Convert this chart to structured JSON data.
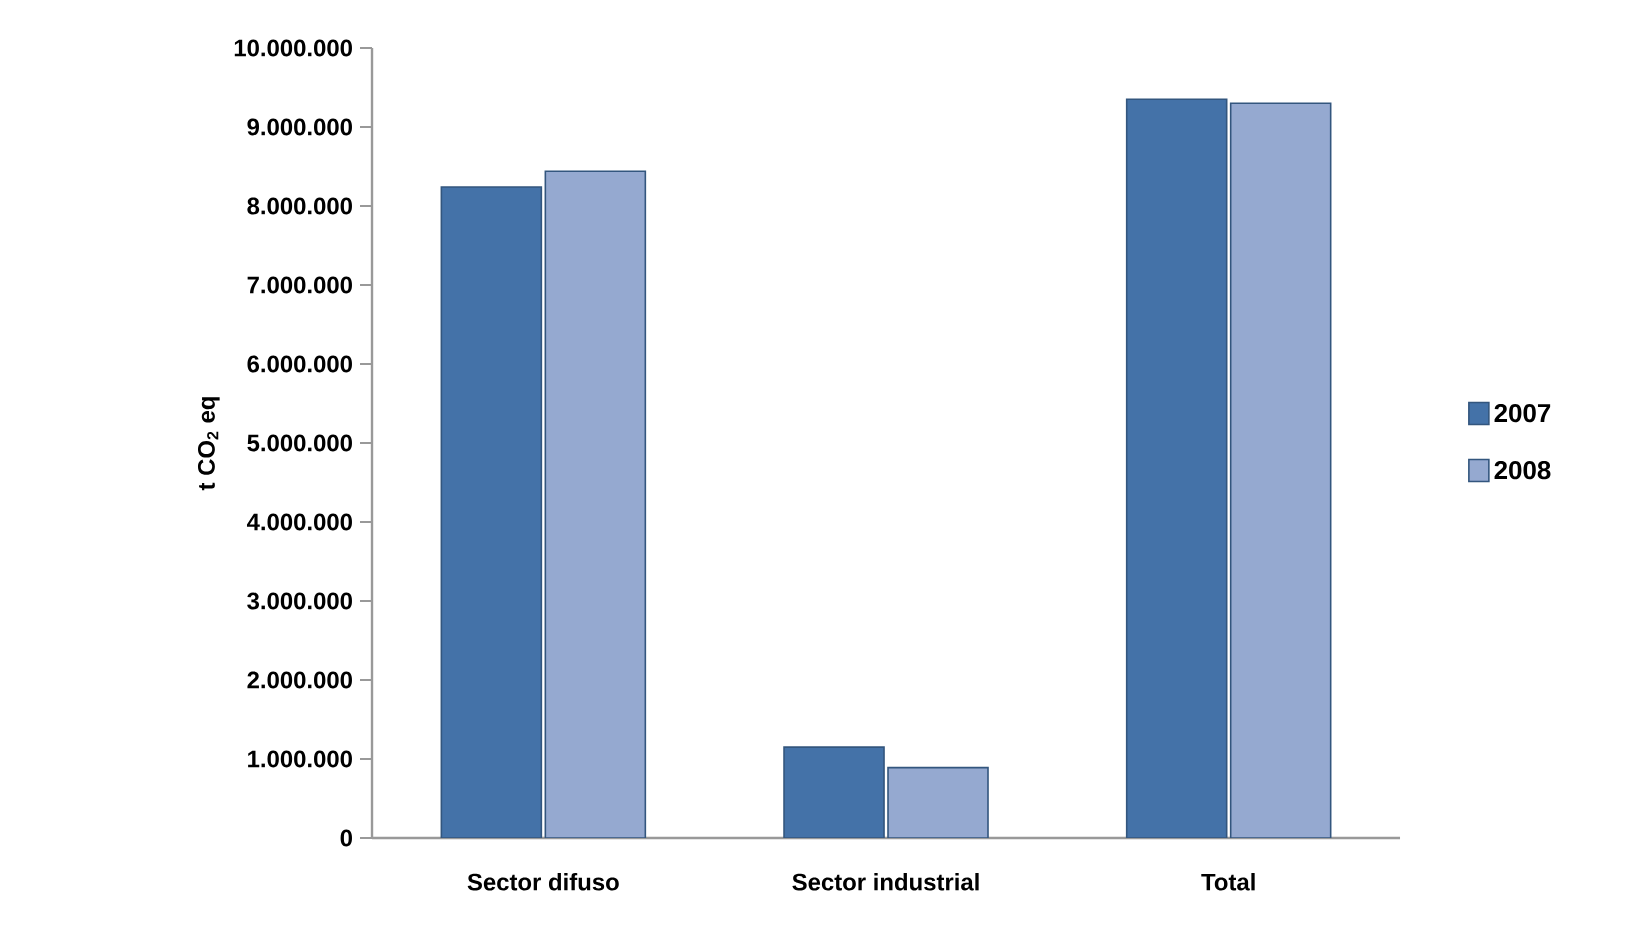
{
  "chart_data": {
    "type": "bar",
    "ylabel": "t CO$_{2}$ eq",
    "categories": [
      "Sector difuso",
      "Sector industrial",
      "Total"
    ],
    "series": [
      {
        "name": "2007",
        "color": "#4472a8",
        "values": [
          8240000,
          1150000,
          9350000
        ]
      },
      {
        "name": "2008",
        "color": "#95a9d0",
        "values": [
          8440000,
          890000,
          9300000
        ]
      }
    ],
    "ylim": [
      0,
      10000000
    ],
    "yticks": [
      {
        "value": 0,
        "label": "0"
      },
      {
        "value": 1000000,
        "label": "1.000.000"
      },
      {
        "value": 2000000,
        "label": "2.000.000"
      },
      {
        "value": 3000000,
        "label": "3.000.000"
      },
      {
        "value": 4000000,
        "label": "4.000.000"
      },
      {
        "value": 5000000,
        "label": "5.000.000"
      },
      {
        "value": 6000000,
        "label": "6.000.000"
      },
      {
        "value": 7000000,
        "label": "7.000.000"
      },
      {
        "value": 8000000,
        "label": "8.000.000"
      },
      {
        "value": 9000000,
        "label": "9.000.000"
      },
      {
        "value": 10000000,
        "label": "10.000.000"
      }
    ],
    "grid": false,
    "legend": "right"
  }
}
